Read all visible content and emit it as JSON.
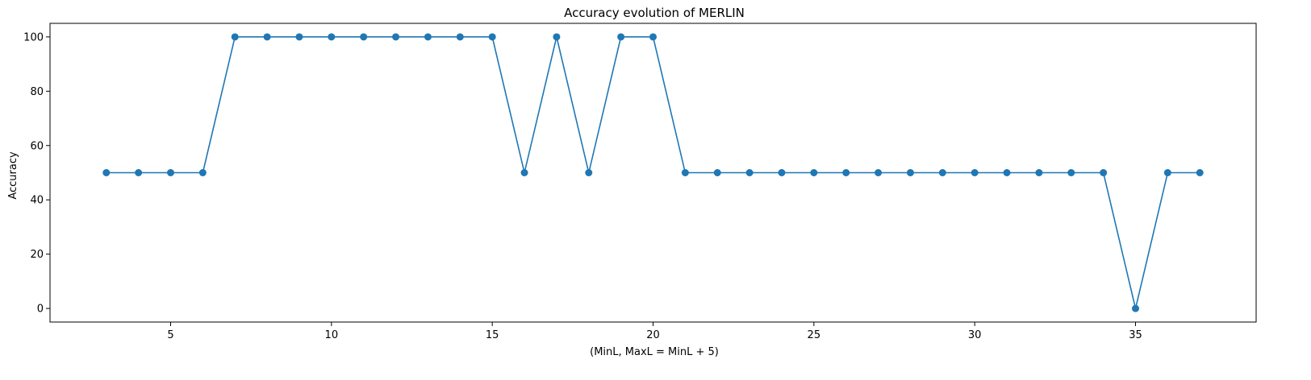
{
  "chart_data": {
    "type": "line",
    "title": "Accuracy evolution of MERLIN",
    "xlabel": "(MinL, MaxL = MinL + 5)",
    "ylabel": "Accuracy",
    "xlim": [
      1.25,
      38.75
    ],
    "ylim": [
      -5,
      105
    ],
    "xticks": [
      5,
      10,
      15,
      20,
      25,
      30,
      35
    ],
    "yticks": [
      0,
      20,
      40,
      60,
      80,
      100
    ],
    "grid": false,
    "legend": "none",
    "marker": "circle",
    "line_color": "#1f77b4",
    "x": [
      3,
      4,
      5,
      6,
      7,
      8,
      9,
      10,
      11,
      12,
      13,
      14,
      15,
      16,
      17,
      18,
      19,
      20,
      21,
      22,
      23,
      24,
      25,
      26,
      27,
      28,
      29,
      30,
      31,
      32,
      33,
      34,
      35,
      36,
      37
    ],
    "y": [
      50,
      50,
      50,
      50,
      100,
      100,
      100,
      100,
      100,
      100,
      100,
      100,
      100,
      50,
      100,
      50,
      100,
      100,
      50,
      50,
      50,
      50,
      50,
      50,
      50,
      50,
      50,
      50,
      50,
      50,
      50,
      50,
      0,
      50,
      50
    ]
  }
}
